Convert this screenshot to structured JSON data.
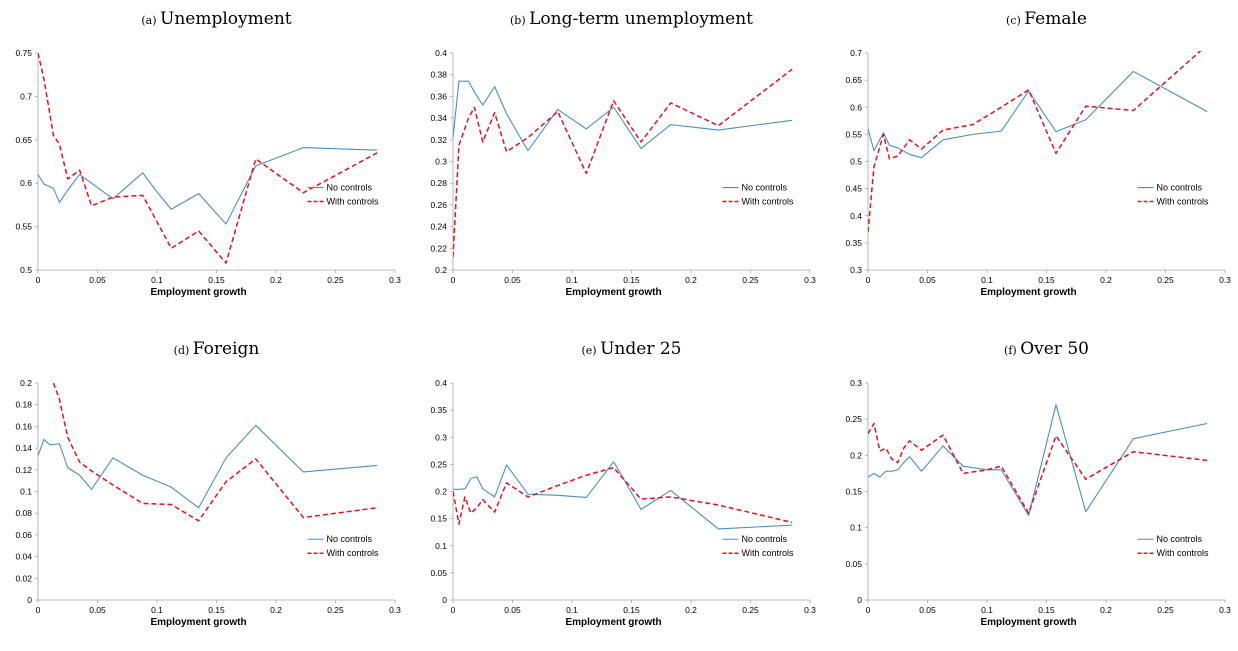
{
  "series_styles": [
    {
      "name": "No controls",
      "color": "#4a8ec8",
      "dash": ""
    },
    {
      "name": "With controls",
      "color": "#e8101c",
      "dash": "5,3"
    }
  ],
  "chart_data": [
    {
      "type": "line",
      "label": "(a)",
      "title": "Unemployment",
      "xlabel": "Employment growth",
      "xlim": [
        0,
        0.3
      ],
      "xticks": [
        0,
        0.05,
        0.1,
        0.15,
        0.2,
        0.25,
        0.3
      ],
      "ylim": [
        0.5,
        0.75
      ],
      "yticks": [
        0.5,
        0.55,
        0.6,
        0.65,
        0.7,
        0.75
      ],
      "legend": "right-middle",
      "series": [
        {
          "name": "No controls",
          "x": [
            0,
            0.005,
            0.013,
            0.018,
            0.025,
            0.035,
            0.045,
            0.063,
            0.088,
            0.1,
            0.112,
            0.135,
            0.158,
            0.183,
            0.223,
            0.285
          ],
          "y": [
            0.61,
            0.599,
            0.594,
            0.578,
            0.592,
            0.61,
            0.6,
            0.582,
            0.612,
            0.59,
            0.57,
            0.588,
            0.553,
            0.62,
            0.641,
            0.638
          ]
        },
        {
          "name": "With controls",
          "x": [
            0,
            0.005,
            0.013,
            0.018,
            0.025,
            0.035,
            0.045,
            0.063,
            0.088,
            0.112,
            0.135,
            0.158,
            0.183,
            0.223,
            0.285
          ],
          "y": [
            0.75,
            0.72,
            0.655,
            0.645,
            0.605,
            0.615,
            0.574,
            0.584,
            0.586,
            0.525,
            0.545,
            0.508,
            0.628,
            0.589,
            0.635
          ]
        }
      ]
    },
    {
      "type": "line",
      "label": "(b)",
      "title": "Long-term unemployment",
      "xlabel": "Employment growth",
      "xlim": [
        0,
        0.3
      ],
      "xticks": [
        0,
        0.05,
        0.1,
        0.15,
        0.2,
        0.25,
        0.3
      ],
      "ylim": [
        0.2,
        0.4
      ],
      "yticks": [
        0.2,
        0.22,
        0.24,
        0.26,
        0.28,
        0.3,
        0.32,
        0.34,
        0.36,
        0.38,
        0.4
      ],
      "legend": "right-middle",
      "series": [
        {
          "name": "No controls",
          "x": [
            0,
            0.005,
            0.013,
            0.018,
            0.025,
            0.035,
            0.045,
            0.063,
            0.088,
            0.112,
            0.135,
            0.158,
            0.183,
            0.223,
            0.285
          ],
          "y": [
            0.322,
            0.374,
            0.374,
            0.364,
            0.352,
            0.369,
            0.344,
            0.31,
            0.348,
            0.33,
            0.35,
            0.312,
            0.334,
            0.329,
            0.338
          ]
        },
        {
          "name": "With controls",
          "x": [
            0,
            0.005,
            0.013,
            0.018,
            0.025,
            0.035,
            0.045,
            0.063,
            0.088,
            0.112,
            0.135,
            0.158,
            0.183,
            0.223,
            0.285
          ],
          "y": [
            0.212,
            0.315,
            0.34,
            0.35,
            0.318,
            0.345,
            0.309,
            0.322,
            0.346,
            0.289,
            0.356,
            0.318,
            0.354,
            0.333,
            0.385
          ]
        }
      ]
    },
    {
      "type": "line",
      "label": "(c)",
      "title": "Female",
      "xlabel": "Employment growth",
      "xlim": [
        0,
        0.3
      ],
      "xticks": [
        0,
        0.05,
        0.1,
        0.15,
        0.2,
        0.25,
        0.3
      ],
      "ylim": [
        0.3,
        0.7
      ],
      "yticks": [
        0.3,
        0.35,
        0.4,
        0.45,
        0.5,
        0.55,
        0.6,
        0.65,
        0.7
      ],
      "legend": "right-middle",
      "series": [
        {
          "name": "No controls",
          "x": [
            0,
            0.005,
            0.013,
            0.018,
            0.025,
            0.035,
            0.045,
            0.063,
            0.088,
            0.112,
            0.135,
            0.158,
            0.183,
            0.223,
            0.285
          ],
          "y": [
            0.56,
            0.52,
            0.553,
            0.53,
            0.525,
            0.513,
            0.507,
            0.54,
            0.55,
            0.556,
            0.63,
            0.555,
            0.577,
            0.666,
            0.592
          ]
        },
        {
          "name": "With controls",
          "x": [
            0,
            0.005,
            0.013,
            0.018,
            0.025,
            0.035,
            0.045,
            0.063,
            0.088,
            0.112,
            0.135,
            0.158,
            0.183,
            0.223,
            0.28
          ],
          "y": [
            0.37,
            0.49,
            0.55,
            0.505,
            0.51,
            0.54,
            0.523,
            0.558,
            0.568,
            0.6,
            0.632,
            0.515,
            0.602,
            0.594,
            0.705
          ]
        }
      ]
    },
    {
      "type": "line",
      "label": "(d)",
      "title": "Foreign",
      "xlabel": "Employment growth",
      "xlim": [
        0,
        0.3
      ],
      "xticks": [
        0,
        0.05,
        0.1,
        0.15,
        0.2,
        0.25,
        0.3
      ],
      "ylim": [
        0,
        0.2
      ],
      "yticks": [
        0,
        0.02,
        0.04,
        0.06,
        0.08,
        0.1,
        0.12,
        0.14,
        0.16,
        0.18,
        0.2
      ],
      "legend": "right-bottom",
      "series": [
        {
          "name": "No controls",
          "x": [
            0,
            0.005,
            0.01,
            0.018,
            0.025,
            0.035,
            0.045,
            0.063,
            0.088,
            0.112,
            0.135,
            0.158,
            0.183,
            0.223,
            0.285
          ],
          "y": [
            0.133,
            0.148,
            0.143,
            0.144,
            0.122,
            0.115,
            0.102,
            0.131,
            0.115,
            0.104,
            0.085,
            0.131,
            0.161,
            0.118,
            0.124
          ]
        },
        {
          "name": "With controls",
          "x": [
            0.013,
            0.018,
            0.025,
            0.035,
            0.045,
            0.063,
            0.088,
            0.112,
            0.135,
            0.158,
            0.183,
            0.223,
            0.285
          ],
          "y": [
            0.2,
            0.185,
            0.15,
            0.127,
            0.119,
            0.106,
            0.089,
            0.088,
            0.073,
            0.109,
            0.13,
            0.076,
            0.085
          ]
        }
      ]
    },
    {
      "type": "line",
      "label": "(e)",
      "title": "Under 25",
      "xlabel": "Employment growth",
      "xlim": [
        0,
        0.3
      ],
      "xticks": [
        0,
        0.05,
        0.1,
        0.15,
        0.2,
        0.25,
        0.3
      ],
      "ylim": [
        0,
        0.4
      ],
      "yticks": [
        0,
        0.05,
        0.1,
        0.15,
        0.2,
        0.25,
        0.3,
        0.35,
        0.4
      ],
      "legend": "right-bottom",
      "series": [
        {
          "name": "No controls",
          "x": [
            0,
            0.005,
            0.01,
            0.015,
            0.02,
            0.025,
            0.035,
            0.045,
            0.063,
            0.088,
            0.112,
            0.135,
            0.158,
            0.183,
            0.223,
            0.285
          ],
          "y": [
            0.204,
            0.204,
            0.205,
            0.224,
            0.227,
            0.205,
            0.19,
            0.249,
            0.195,
            0.193,
            0.189,
            0.255,
            0.167,
            0.202,
            0.131,
            0.138
          ]
        },
        {
          "name": "With controls",
          "x": [
            0,
            0.005,
            0.01,
            0.015,
            0.02,
            0.025,
            0.035,
            0.045,
            0.063,
            0.088,
            0.112,
            0.135,
            0.158,
            0.183,
            0.223,
            0.285
          ],
          "y": [
            0.2,
            0.14,
            0.19,
            0.16,
            0.17,
            0.185,
            0.162,
            0.216,
            0.19,
            0.211,
            0.23,
            0.244,
            0.186,
            0.19,
            0.175,
            0.143
          ]
        }
      ]
    },
    {
      "type": "line",
      "label": "(f)",
      "title": "Over 50",
      "xlabel": "Employment growth",
      "xlim": [
        0,
        0.3
      ],
      "xticks": [
        0,
        0.05,
        0.1,
        0.15,
        0.2,
        0.25,
        0.3
      ],
      "ylim": [
        0,
        0.3
      ],
      "yticks": [
        0,
        0.05,
        0.1,
        0.15,
        0.2,
        0.25,
        0.3
      ],
      "legend": "right-bottom",
      "series": [
        {
          "name": "No controls",
          "x": [
            0,
            0.005,
            0.01,
            0.015,
            0.02,
            0.025,
            0.03,
            0.035,
            0.045,
            0.063,
            0.08,
            0.1,
            0.112,
            0.135,
            0.158,
            0.183,
            0.223,
            0.285
          ],
          "y": [
            0.17,
            0.175,
            0.17,
            0.178,
            0.178,
            0.18,
            0.19,
            0.198,
            0.178,
            0.213,
            0.185,
            0.18,
            0.18,
            0.117,
            0.27,
            0.122,
            0.223,
            0.244
          ]
        },
        {
          "name": "With controls",
          "x": [
            0,
            0.005,
            0.01,
            0.015,
            0.02,
            0.025,
            0.03,
            0.035,
            0.045,
            0.063,
            0.08,
            0.1,
            0.112,
            0.135,
            0.158,
            0.183,
            0.223,
            0.285
          ],
          "y": [
            0.23,
            0.244,
            0.206,
            0.21,
            0.195,
            0.19,
            0.21,
            0.22,
            0.207,
            0.228,
            0.175,
            0.18,
            0.185,
            0.12,
            0.227,
            0.167,
            0.205,
            0.193
          ]
        }
      ]
    }
  ]
}
